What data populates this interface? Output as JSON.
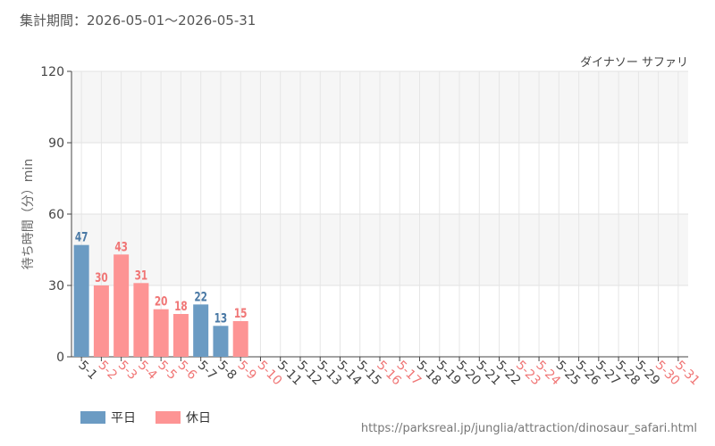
{
  "header": {
    "period": "集計期間：2026-05-01〜2026-05-31"
  },
  "colors": {
    "weekday": "#6b9bc3",
    "holiday": "#fd9494",
    "weekday_label": "#4a79a5",
    "holiday_label": "#f07676"
  },
  "legend": {
    "weekday": "平日",
    "holiday": "休日"
  },
  "footer": {
    "source_url": "https://parksreal.jp/junglia/attraction/dinosaur_safari.html"
  },
  "chart_data": {
    "type": "bar",
    "title": "ダイナソー サファリ",
    "ylabel": "待ち時間（分）min",
    "ylim": [
      0,
      120
    ],
    "yticks": [
      0,
      30,
      60,
      90,
      120
    ],
    "legend_position": "bottom-left",
    "categories": [
      "5-1",
      "5-2",
      "5-3",
      "5-4",
      "5-5",
      "5-6",
      "5-7",
      "5-8",
      "5-9",
      "5-10",
      "5-11",
      "5-12",
      "5-13",
      "5-14",
      "5-15",
      "5-16",
      "5-17",
      "5-18",
      "5-19",
      "5-20",
      "5-21",
      "5-22",
      "5-23",
      "5-24",
      "5-25",
      "5-26",
      "5-27",
      "5-28",
      "5-29",
      "5-30",
      "5-31"
    ],
    "day_type": [
      "weekday",
      "holiday",
      "holiday",
      "holiday",
      "holiday",
      "holiday",
      "weekday",
      "weekday",
      "holiday",
      "holiday",
      "weekday",
      "weekday",
      "weekday",
      "weekday",
      "weekday",
      "holiday",
      "holiday",
      "weekday",
      "weekday",
      "weekday",
      "weekday",
      "weekday",
      "holiday",
      "holiday",
      "weekday",
      "weekday",
      "weekday",
      "weekday",
      "weekday",
      "holiday",
      "holiday"
    ],
    "values": [
      47,
      30,
      43,
      31,
      20,
      18,
      22,
      13,
      15,
      null,
      null,
      null,
      null,
      null,
      null,
      null,
      null,
      null,
      null,
      null,
      null,
      null,
      null,
      null,
      null,
      null,
      null,
      null,
      null,
      null,
      null
    ]
  }
}
